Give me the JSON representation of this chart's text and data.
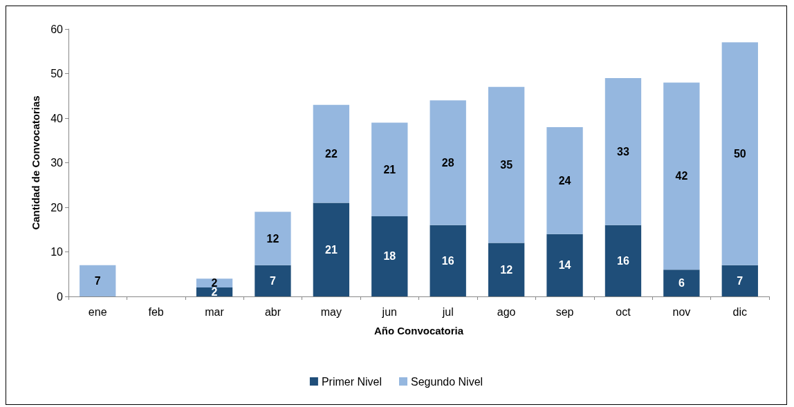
{
  "chart_data": {
    "type": "bar",
    "stacked": true,
    "xlabel": "Año Convocatoria",
    "ylabel": "Cantidad de Convocatorias",
    "categories": [
      "ene",
      "feb",
      "mar",
      "abr",
      "may",
      "jun",
      "jul",
      "ago",
      "sep",
      "oct",
      "nov",
      "dic"
    ],
    "series": [
      {
        "name": "Primer Nivel",
        "color": "#1f4e79",
        "values": [
          null,
          null,
          2,
          7,
          21,
          18,
          16,
          12,
          14,
          16,
          6,
          7
        ]
      },
      {
        "name": "Segundo Nivel",
        "color": "#95b7df",
        "values": [
          7,
          null,
          2,
          12,
          22,
          21,
          28,
          35,
          24,
          33,
          42,
          50
        ]
      }
    ],
    "ylim": [
      0,
      60
    ],
    "yticks": [
      0,
      10,
      20,
      30,
      40,
      50,
      60
    ],
    "grid": false,
    "legend": "bottom",
    "data_labels": true
  }
}
